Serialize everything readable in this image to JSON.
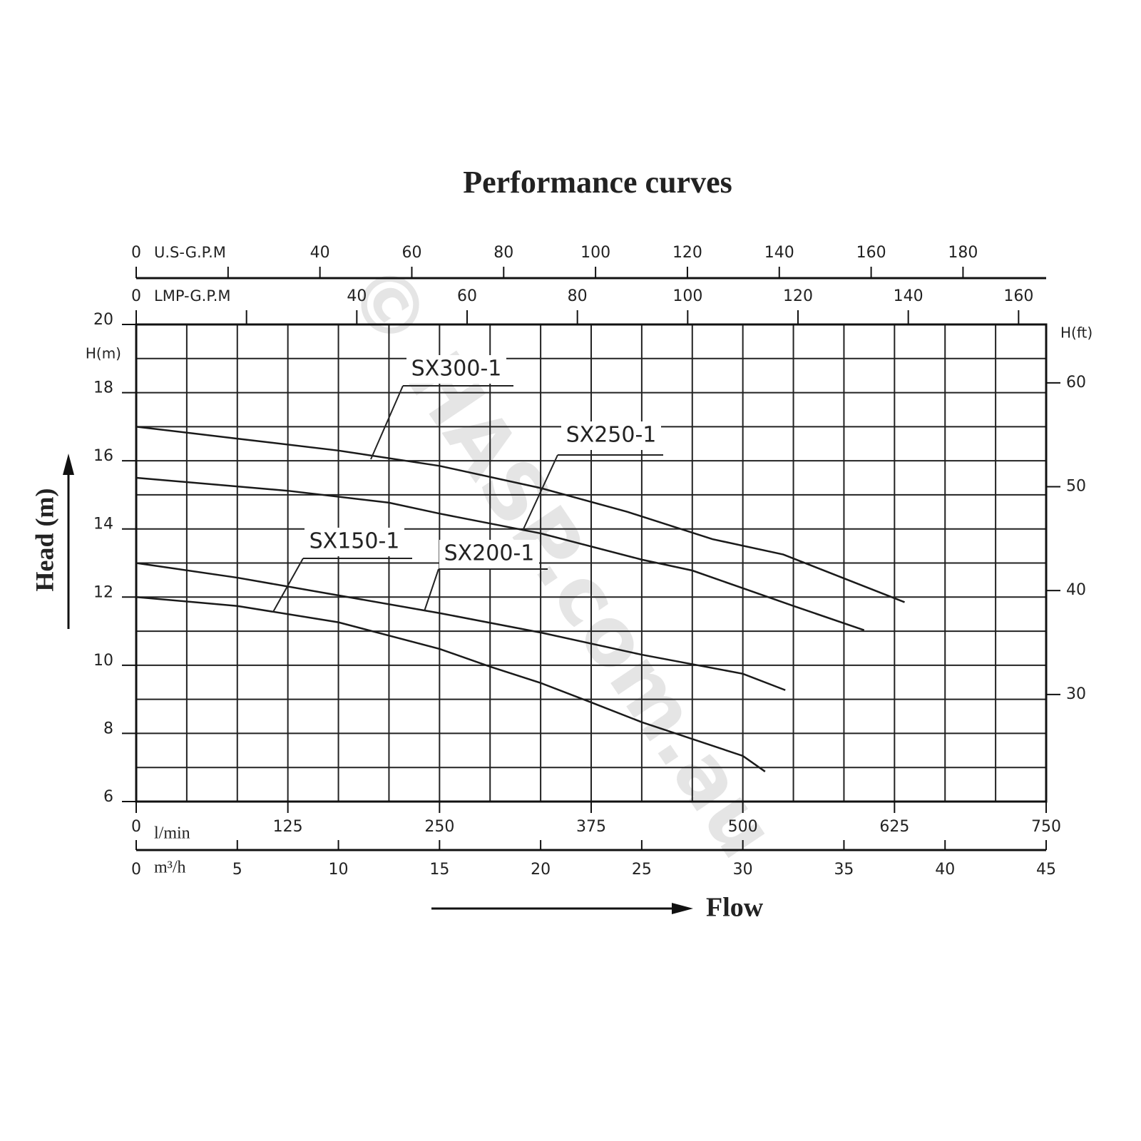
{
  "chart_data": {
    "type": "line",
    "title": "Performance curves",
    "y_label": "Head (m)",
    "x_label": "Flow",
    "watermark": "© HASP.com.au",
    "xlim": [
      0,
      45
    ],
    "xticks": [
      0,
      5,
      10,
      15,
      20,
      25,
      30,
      35,
      40,
      45
    ],
    "x_unit": "m³/h",
    "xgrid": [
      0,
      2.5,
      5,
      7.5,
      10,
      12.5,
      15,
      17.5,
      20,
      22.5,
      25,
      27.5,
      30,
      32.5,
      35,
      37.5,
      40,
      42.5,
      45
    ],
    "ylim": [
      6,
      20
    ],
    "yticks": [
      6,
      8,
      10,
      12,
      14,
      16,
      18,
      20
    ],
    "y_unit": "H(m)",
    "ygrid": [
      6,
      7,
      8,
      9,
      10,
      11,
      12,
      13,
      14,
      15,
      16,
      17,
      18,
      19,
      20
    ],
    "y2lim": [
      19.69,
      65.62
    ],
    "y2ticks": [
      30,
      40,
      50,
      60
    ],
    "y2_unit": "H(ft)",
    "secondary_x_axes": [
      {
        "unit": "l/min",
        "position": "bottom",
        "lim": [
          0,
          750
        ],
        "ticks": [
          0,
          125,
          250,
          375,
          500,
          625,
          750
        ]
      },
      {
        "unit": "U.S-G.P.M",
        "position": "top",
        "lim": [
          0,
          198.1
        ],
        "ticks": [
          0,
          {
            "value": 20,
            "label": null
          },
          40,
          60,
          80,
          100,
          120,
          140,
          160,
          180
        ]
      },
      {
        "unit": "LMP-G.P.M",
        "position": "top",
        "lim": [
          0,
          165
        ],
        "ticks": [
          0,
          {
            "value": 20,
            "label": null
          },
          40,
          60,
          80,
          100,
          120,
          140,
          160
        ]
      }
    ],
    "series": [
      {
        "name": "SX300-1",
        "color": "#1a1a1a",
        "x": [
          0,
          5,
          10,
          15,
          20,
          24.3,
          28.5,
          32,
          38
        ],
        "values": [
          17,
          16.65,
          16.3,
          15.85,
          15.2,
          14.5,
          13.7,
          13.25,
          11.85
        ]
      },
      {
        "name": "SX250-1",
        "color": "#1a1a1a",
        "x": [
          0,
          7.5,
          12.5,
          15,
          20,
          25,
          27.5,
          30,
          32.5,
          36
        ],
        "values": [
          15.5,
          15.12,
          14.77,
          14.45,
          13.87,
          13.1,
          12.78,
          12.26,
          11.74,
          11.03
        ]
      },
      {
        "name": "SX200-1",
        "color": "#1a1a1a",
        "x": [
          0,
          5,
          10,
          15,
          20,
          25,
          30,
          32.1
        ],
        "values": [
          13,
          12.57,
          12.05,
          11.53,
          10.96,
          10.31,
          9.75,
          9.27
        ]
      },
      {
        "name": "SX150-1",
        "color": "#1a1a1a",
        "x": [
          0,
          5,
          10,
          15,
          17.5,
          20,
          22.5,
          25,
          30,
          31.1
        ],
        "values": [
          12,
          11.74,
          11.26,
          10.48,
          9.96,
          9.48,
          8.91,
          8.33,
          7.34,
          6.88
        ]
      }
    ]
  }
}
